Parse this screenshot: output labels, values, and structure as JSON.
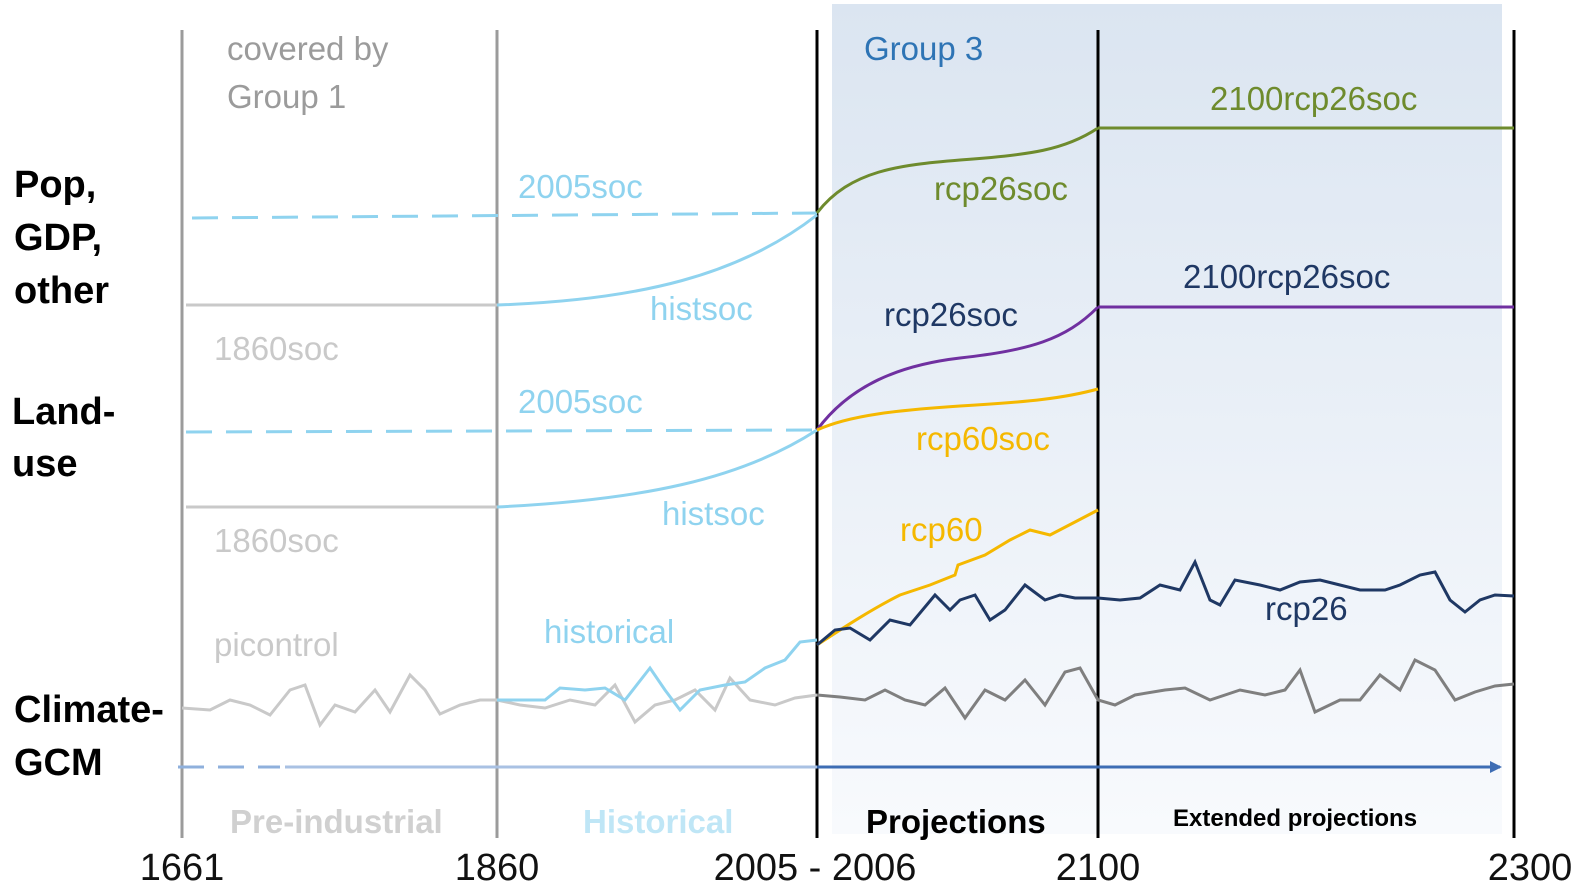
{
  "colors": {
    "grey_light": "#c9c9c9",
    "grey_mid": "#9b9b9b",
    "grey_dark": "#7f7f7f",
    "cyan": "#8fd3ef",
    "olive": "#6e8b2d",
    "purple": "#7030a0",
    "yellow": "#f5b800",
    "navy": "#1f3864",
    "blue_arrow": "#3e6db4",
    "group3_text": "#2e74b5",
    "group3_band_top": "#dfe8f3",
    "group3_band_bottom": "#f7f9fc"
  },
  "group_notes": {
    "covered_line1": "covered by",
    "covered_line2": "Group 1",
    "group3": "Group 3"
  },
  "row_labels": {
    "pop_line1": "Pop,",
    "pop_line2": "GDP,",
    "pop_line3": "other",
    "land_line1": "Land-",
    "land_line2": "use",
    "climate_line1": "Climate-",
    "climate_line2": "GCM"
  },
  "curve_labels": {
    "pop_2005soc": "2005soc",
    "pop_histsoc": "histsoc",
    "pop_1860soc": "1860soc",
    "pop_rcp26soc": "rcp26soc",
    "pop_2100rcp26soc": "2100rcp26soc",
    "land_2005soc": "2005soc",
    "land_histsoc": "histsoc",
    "land_1860soc": "1860soc",
    "land_rcp26soc": "rcp26soc",
    "land_rcp60soc": "rcp60soc",
    "land_2100rcp26soc": "2100rcp26soc",
    "climate_picontrol": "picontrol",
    "climate_historical": "historical",
    "climate_rcp60": "rcp60",
    "climate_rcp26": "rcp26"
  },
  "periods": {
    "preindustrial": "Pre-industrial",
    "historical": "Historical",
    "projections": "Projections",
    "extended": "Extended projections"
  },
  "axis_ticks": {
    "t1661": "1661",
    "t1860": "1860",
    "t2005": "2005 - 2006",
    "t2100": "2100",
    "t2300": "2300"
  }
}
